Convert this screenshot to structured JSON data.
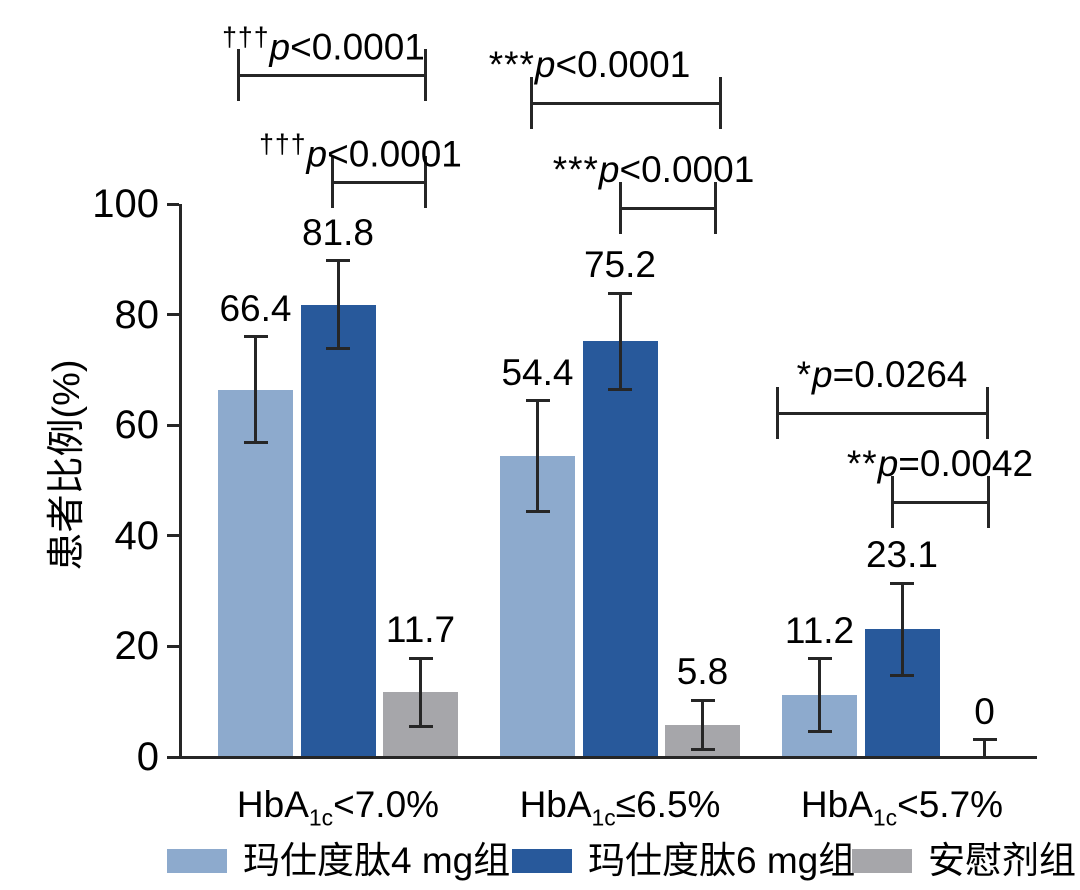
{
  "figure": {
    "background": "#ffffff"
  },
  "chart_data": {
    "type": "bar",
    "title": "",
    "xlabel": "",
    "ylabel": "患者比例(%)",
    "ylim": [
      0,
      100
    ],
    "yticks": [
      0,
      20,
      40,
      60,
      80,
      100
    ],
    "grid": false,
    "legend_position": "bottom",
    "categories": [
      {
        "pre": "HbA",
        "sub": "1c",
        "post": "<7.0%"
      },
      {
        "pre": "HbA",
        "sub": "1c",
        "post": "≤6.5%"
      },
      {
        "pre": "HbA",
        "sub": "1c",
        "post": "<5.7%"
      }
    ],
    "series": [
      {
        "name": "玛仕度肽4 mg组",
        "color": "#8DAACD",
        "values": [
          66.4,
          54.4,
          11.2
        ],
        "errors": [
          9.6,
          10.0,
          6.6
        ]
      },
      {
        "name": "玛仕度肽6 mg组",
        "color": "#28599B",
        "values": [
          81.8,
          75.2,
          23.1
        ],
        "errors": [
          7.9,
          8.7,
          8.3
        ]
      },
      {
        "name": "安慰剂组",
        "color": "#A6A6AA",
        "values": [
          11.7,
          5.8,
          0
        ],
        "errors": [
          6.2,
          4.5,
          3.1
        ]
      }
    ],
    "significance": [
      {
        "id": "g1-outer",
        "marker": "†††",
        "p": "p",
        "rest": "<0.0001"
      },
      {
        "id": "g1-inner",
        "marker": "†††",
        "p": "p",
        "rest": "<0.0001"
      },
      {
        "id": "g2-outer",
        "marker": "***",
        "p": "p",
        "rest": "<0.0001"
      },
      {
        "id": "g2-inner",
        "marker": "***",
        "p": "p",
        "rest": "<0.0001"
      },
      {
        "id": "g3-outer",
        "marker": "*",
        "p": "p",
        "rest": "=0.0264"
      },
      {
        "id": "g3-inner",
        "marker": "**",
        "p": "p",
        "rest": "=0.0042"
      }
    ],
    "colors": {
      "axis": "#262626",
      "text": "#000000"
    }
  }
}
